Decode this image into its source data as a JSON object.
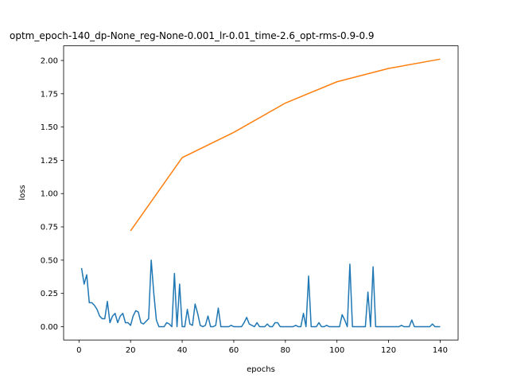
{
  "chart_data": {
    "type": "line",
    "title": "optm_epoch-140_dp-None_reg-None-0.001_lr-0.01_time-2.6_opt-rms-0.9-0.9",
    "xlabel": "epochs",
    "ylabel": "loss",
    "xlim": [
      -5.95,
      146.95
    ],
    "ylim": [
      -0.1,
      2.11
    ],
    "xticks": [
      0,
      20,
      40,
      60,
      80,
      100,
      120,
      140
    ],
    "yticks": [
      {
        "value": 0,
        "label": "0.00"
      },
      {
        "value": 0.25,
        "label": "0.25"
      },
      {
        "value": 0.5,
        "label": "0.50"
      },
      {
        "value": 0.75,
        "label": "0.75"
      },
      {
        "value": 1,
        "label": "1.00"
      },
      {
        "value": 1.25,
        "label": "1.25"
      },
      {
        "value": 1.5,
        "label": "1.50"
      },
      {
        "value": 1.75,
        "label": "1.75"
      },
      {
        "value": 2,
        "label": "2.00"
      }
    ],
    "grid": false,
    "series": [
      {
        "color": "#1f77b4",
        "x": [
          1,
          2,
          3,
          4,
          5,
          6,
          7,
          8,
          9,
          10,
          11,
          12,
          13,
          14,
          15,
          16,
          17,
          18,
          19,
          20,
          21,
          22,
          23,
          24,
          25,
          26,
          27,
          28,
          29,
          30,
          31,
          32,
          33,
          34,
          35,
          36,
          37,
          38,
          39,
          40,
          41,
          42,
          43,
          44,
          45,
          46,
          47,
          48,
          49,
          50,
          51,
          52,
          53,
          54,
          55,
          56,
          57,
          58,
          59,
          60,
          61,
          62,
          63,
          64,
          65,
          66,
          67,
          68,
          69,
          70,
          71,
          72,
          73,
          74,
          75,
          76,
          77,
          78,
          79,
          80,
          81,
          82,
          83,
          84,
          85,
          86,
          87,
          88,
          89,
          90,
          91,
          92,
          93,
          94,
          95,
          96,
          97,
          98,
          99,
          100,
          101,
          102,
          103,
          104,
          105,
          106,
          107,
          108,
          109,
          110,
          111,
          112,
          113,
          114,
          115,
          116,
          117,
          118,
          119,
          120,
          121,
          122,
          123,
          124,
          125,
          126,
          127,
          128,
          129,
          130,
          131,
          132,
          133,
          134,
          135,
          136,
          137,
          138,
          139,
          140
        ],
        "values": [
          0.44,
          0.32,
          0.39,
          0.18,
          0.18,
          0.16,
          0.13,
          0.08,
          0.06,
          0.06,
          0.19,
          0.03,
          0.08,
          0.1,
          0.03,
          0.08,
          0.1,
          0.03,
          0.03,
          0.01,
          0.08,
          0.12,
          0.11,
          0.03,
          0.02,
          0.04,
          0.06,
          0.5,
          0.25,
          0.05,
          0,
          0,
          0,
          0.03,
          0.02,
          0,
          0.4,
          0,
          0.32,
          0,
          0,
          0.13,
          0.02,
          0.01,
          0.17,
          0.1,
          0.01,
          0,
          0.01,
          0.08,
          0,
          0,
          0.01,
          0.14,
          0,
          0,
          0,
          0,
          0.01,
          0,
          0,
          0,
          0,
          0.03,
          0.07,
          0.02,
          0.01,
          0,
          0.03,
          0,
          0,
          0,
          0.02,
          0,
          0,
          0.03,
          0.03,
          0,
          0,
          0,
          0,
          0,
          0,
          0.01,
          0,
          0,
          0.1,
          0,
          0.38,
          0,
          0,
          0,
          0.03,
          0,
          0,
          0.01,
          0,
          0,
          0,
          0,
          0,
          0.09,
          0.05,
          0,
          0.47,
          0,
          0,
          0,
          0,
          0,
          0,
          0.26,
          0,
          0.45,
          0,
          0,
          0,
          0,
          0,
          0,
          0,
          0,
          0,
          0,
          0.01,
          0,
          0,
          0,
          0.05,
          0,
          0,
          0,
          0,
          0,
          0,
          0,
          0.02,
          0,
          0,
          0
        ]
      },
      {
        "color": "#ff7f0e",
        "x": [
          20,
          40,
          60,
          80,
          100,
          120,
          140
        ],
        "values": [
          0.72,
          1.27,
          1.46,
          1.68,
          1.84,
          1.94,
          2.01
        ]
      }
    ]
  }
}
